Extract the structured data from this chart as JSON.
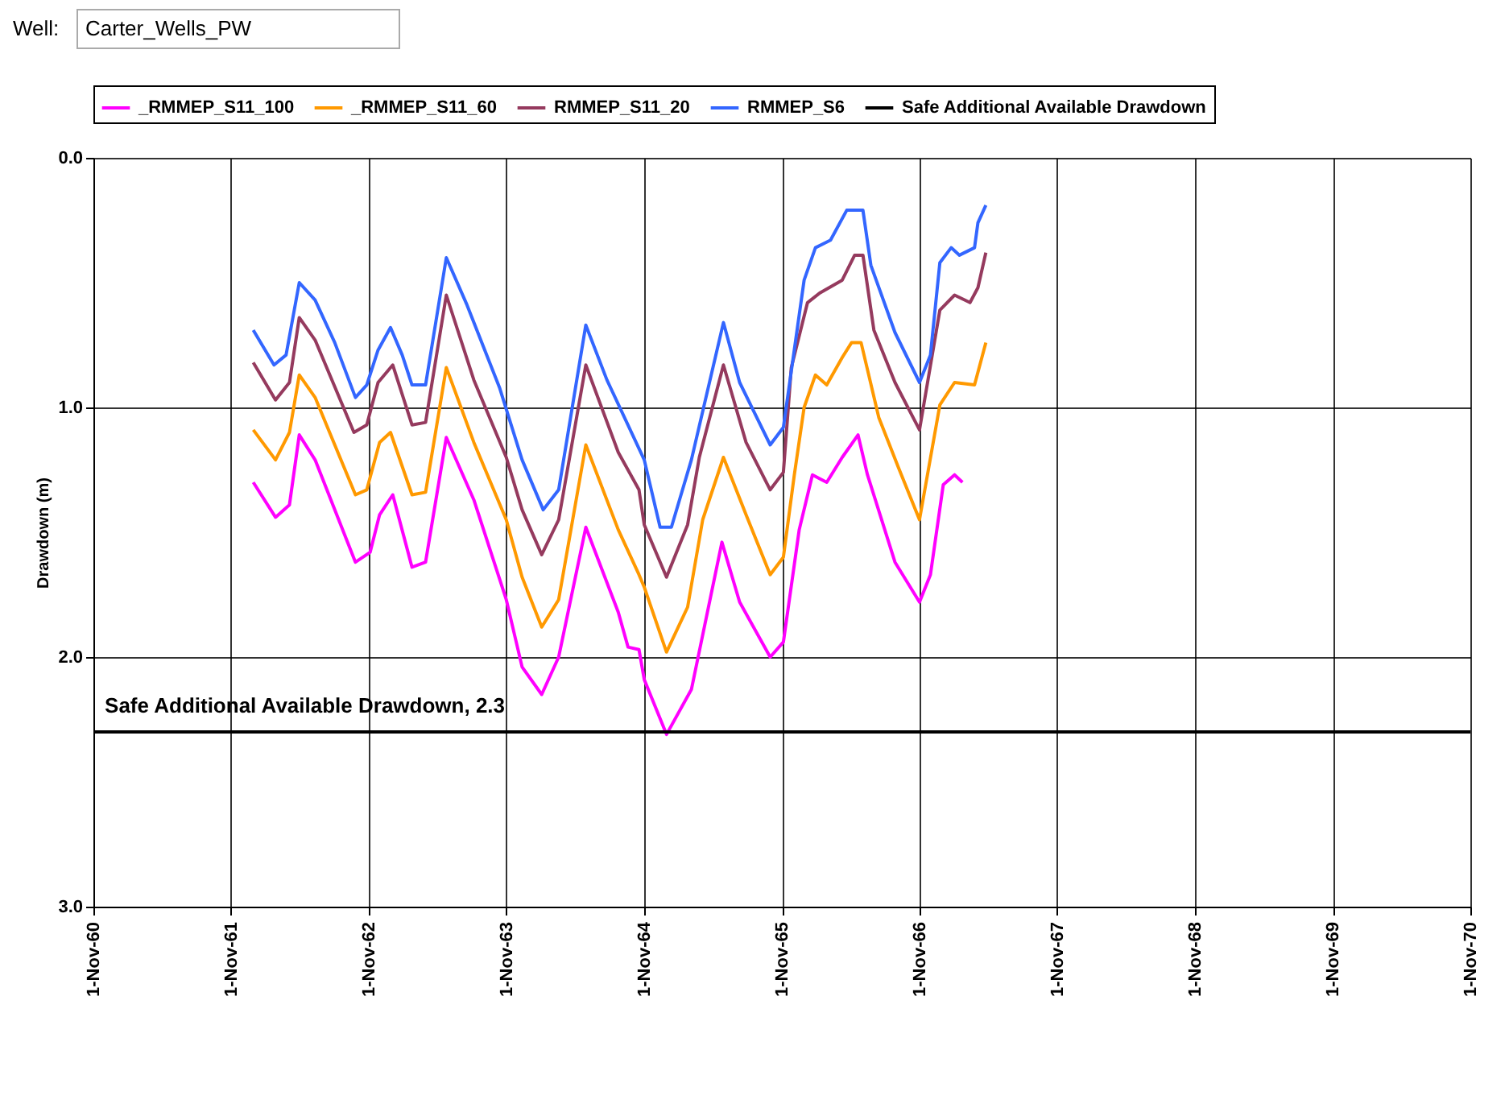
{
  "chart_data": {
    "type": "line",
    "title": "Well:",
    "subtitle": "Carter_Wells_PW",
    "ylabel": "Drawdown (m)",
    "xlim": [
      "1960-11-01",
      "1970-11-01"
    ],
    "xticks": [
      {
        "value": "1960-11-01",
        "label": "1-Nov-60"
      },
      {
        "value": "1961-11-01",
        "label": "1-Nov-61"
      },
      {
        "value": "1962-11-01",
        "label": "1-Nov-62"
      },
      {
        "value": "1963-11-01",
        "label": "1-Nov-63"
      },
      {
        "value": "1964-11-01",
        "label": "1-Nov-64"
      },
      {
        "value": "1965-11-01",
        "label": "1-Nov-65"
      },
      {
        "value": "1966-11-01",
        "label": "1-Nov-66"
      },
      {
        "value": "1967-11-01",
        "label": "1-Nov-67"
      },
      {
        "value": "1968-11-01",
        "label": "1-Nov-68"
      },
      {
        "value": "1969-11-01",
        "label": "1-Nov-69"
      },
      {
        "value": "1970-11-01",
        "label": "1-Nov-70"
      }
    ],
    "ylim": [
      3.0,
      0.0
    ],
    "yticks": [
      {
        "value": 0,
        "label": "0.0"
      },
      {
        "value": 1,
        "label": "1.0"
      },
      {
        "value": 2,
        "label": "2.0"
      },
      {
        "value": 3,
        "label": "3.0"
      }
    ],
    "grid": true,
    "legend": "top",
    "marker": "none",
    "line_style": "solid",
    "series": [
      {
        "name": "_RMMEP_S11_100",
        "color": "#ff00ff",
        "x": [
          "1961-12-30",
          "1962-02-27",
          "1962-04-05",
          "1962-05-01",
          "1962-06-12",
          "1962-09-27",
          "1962-11-05",
          "1962-11-30",
          "1963-01-04",
          "1963-02-24",
          "1963-04-01",
          "1963-05-26",
          "1963-08-07",
          "1963-11-01",
          "1963-12-13",
          "1964-02-03",
          "1964-03-19",
          "1964-05-30",
          "1964-08-24",
          "1964-09-19",
          "1964-10-18",
          "1964-11-01",
          "1964-12-30",
          "1965-03-06",
          "1965-05-26",
          "1965-07-12",
          "1965-10-01",
          "1965-11-05",
          "1965-12-17",
          "1966-01-21",
          "1966-02-28",
          "1966-04-10",
          "1966-05-22",
          "1966-06-16",
          "1966-08-28",
          "1966-11-01",
          "1966-11-30",
          "1967-01-03",
          "1967-02-02",
          "1967-02-23"
        ],
        "values": [
          1.3,
          1.44,
          1.39,
          1.11,
          1.21,
          1.62,
          1.58,
          1.43,
          1.35,
          1.64,
          1.62,
          1.12,
          1.37,
          1.77,
          2.04,
          2.15,
          2.0,
          1.48,
          1.82,
          1.96,
          1.97,
          2.09,
          2.31,
          2.13,
          1.54,
          1.78,
          2.0,
          1.94,
          1.49,
          1.27,
          1.3,
          1.2,
          1.11,
          1.27,
          1.62,
          1.78,
          1.67,
          1.31,
          1.27,
          1.3
        ]
      },
      {
        "name": "_RMMEP_S11_60",
        "color": "#ff9900",
        "x": [
          "1961-12-30",
          "1962-02-27",
          "1962-04-05",
          "1962-05-01",
          "1962-06-12",
          "1962-09-27",
          "1962-10-27",
          "1962-11-30",
          "1962-12-29",
          "1963-02-24",
          "1963-04-01",
          "1963-05-26",
          "1963-08-07",
          "1963-11-01",
          "1963-12-13",
          "1964-02-03",
          "1964-03-19",
          "1964-05-30",
          "1964-08-24",
          "1964-10-18",
          "1964-11-01",
          "1964-12-30",
          "1965-02-24",
          "1965-04-05",
          "1965-05-30",
          "1965-07-29",
          "1965-10-01",
          "1965-11-05",
          "1965-12-04",
          "1965-12-30",
          "1966-01-29",
          "1966-02-28",
          "1966-04-10",
          "1966-05-05",
          "1966-05-30",
          "1966-07-16",
          "1966-09-06",
          "1966-11-01",
          "1966-12-25",
          "1967-02-02",
          "1967-03-27",
          "1967-04-26"
        ],
        "values": [
          1.09,
          1.21,
          1.1,
          0.87,
          0.96,
          1.35,
          1.33,
          1.14,
          1.1,
          1.35,
          1.34,
          0.84,
          1.14,
          1.45,
          1.68,
          1.88,
          1.77,
          1.15,
          1.49,
          1.67,
          1.72,
          1.98,
          1.8,
          1.45,
          1.2,
          1.43,
          1.67,
          1.6,
          1.27,
          1.0,
          0.87,
          0.91,
          0.8,
          0.74,
          0.74,
          1.04,
          1.24,
          1.45,
          0.99,
          0.9,
          0.91,
          0.74
        ]
      },
      {
        "name": "RMMEP_S11_20",
        "color": "#953a5e",
        "x": [
          "1961-12-30",
          "1962-02-27",
          "1962-04-05",
          "1962-05-01",
          "1962-06-12",
          "1962-09-23",
          "1962-10-27",
          "1962-11-26",
          "1963-01-04",
          "1963-02-24",
          "1963-04-01",
          "1963-05-26",
          "1963-08-07",
          "1963-11-01",
          "1963-12-13",
          "1964-02-03",
          "1964-03-19",
          "1964-05-30",
          "1964-08-24",
          "1964-10-18",
          "1964-11-01",
          "1964-12-30",
          "1965-02-24",
          "1965-03-27",
          "1965-05-30",
          "1965-07-29",
          "1965-10-01",
          "1965-11-05",
          "1965-11-26",
          "1966-01-08",
          "1966-02-11",
          "1966-04-10",
          "1966-05-13",
          "1966-06-04",
          "1966-07-03",
          "1966-08-28",
          "1966-11-01",
          "1966-12-25",
          "1967-02-02",
          "1967-03-15",
          "1967-04-05",
          "1967-04-26"
        ],
        "values": [
          0.82,
          0.97,
          0.9,
          0.64,
          0.73,
          1.1,
          1.07,
          0.9,
          0.83,
          1.07,
          1.06,
          0.55,
          0.89,
          1.2,
          1.41,
          1.59,
          1.45,
          0.83,
          1.18,
          1.33,
          1.47,
          1.68,
          1.47,
          1.2,
          0.83,
          1.14,
          1.33,
          1.26,
          0.84,
          0.58,
          0.54,
          0.49,
          0.39,
          0.39,
          0.69,
          0.9,
          1.09,
          0.61,
          0.55,
          0.58,
          0.52,
          0.38
        ]
      },
      {
        "name": "RMMEP_S6",
        "color": "#3366ff",
        "x": [
          "1961-12-30",
          "1962-02-23",
          "1962-03-27",
          "1962-05-01",
          "1962-06-12",
          "1962-08-03",
          "1962-09-27",
          "1962-10-27",
          "1962-11-26",
          "1962-12-29",
          "1963-01-29",
          "1963-02-24",
          "1963-04-01",
          "1963-05-26",
          "1963-07-20",
          "1963-10-14",
          "1963-12-13",
          "1964-02-07",
          "1964-03-19",
          "1964-05-30",
          "1964-07-25",
          "1964-11-01",
          "1964-12-13",
          "1965-01-12",
          "1965-03-06",
          "1965-05-30",
          "1965-07-12",
          "1965-10-01",
          "1965-11-05",
          "1965-12-30",
          "1966-01-29",
          "1966-03-10",
          "1966-04-22",
          "1966-06-04",
          "1966-06-25",
          "1966-08-28",
          "1966-11-01",
          "1966-11-30",
          "1966-12-25",
          "1967-01-24",
          "1967-02-15",
          "1967-03-27",
          "1967-04-05",
          "1967-04-26"
        ],
        "values": [
          0.69,
          0.83,
          0.79,
          0.5,
          0.57,
          0.74,
          0.96,
          0.91,
          0.77,
          0.68,
          0.79,
          0.91,
          0.91,
          0.4,
          0.59,
          0.92,
          1.21,
          1.41,
          1.33,
          0.67,
          0.89,
          1.21,
          1.48,
          1.48,
          1.21,
          0.66,
          0.9,
          1.15,
          1.08,
          0.49,
          0.36,
          0.33,
          0.21,
          0.21,
          0.43,
          0.7,
          0.9,
          0.79,
          0.42,
          0.36,
          0.39,
          0.36,
          0.26,
          0.19
        ]
      },
      {
        "name": "Safe Additional Available Drawdown",
        "color": "#000000",
        "x": [
          "1960-11-01",
          "1970-11-01"
        ],
        "values": [
          2.3,
          2.3
        ]
      }
    ],
    "annotations": [
      {
        "text": "Safe Additional Available Drawdown, 2.3",
        "x": "1960-12-01",
        "y": 2.3
      }
    ]
  }
}
